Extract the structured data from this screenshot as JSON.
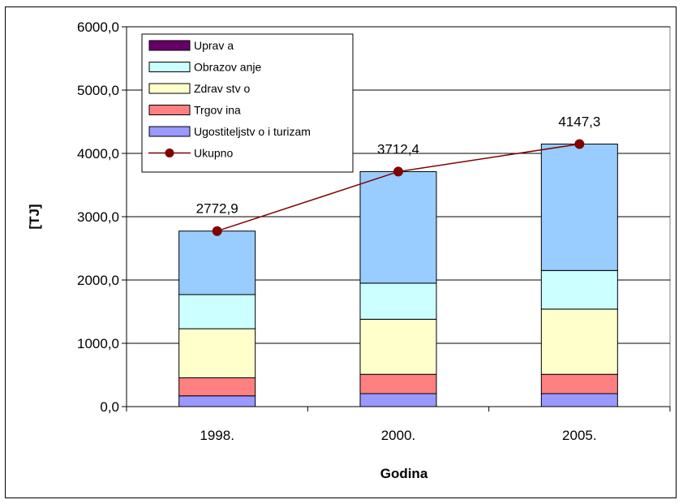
{
  "chart_data": {
    "type": "bar",
    "stacked": true,
    "categories": [
      "1998.",
      "2000.",
      "2005."
    ],
    "xlabel": "Godina",
    "ylabel": "[TJ]",
    "ylim": [
      0,
      6000
    ],
    "yticks": [
      "0,0",
      "1000,0",
      "2000,0",
      "3000,0",
      "4000,0",
      "5000,0",
      "6000,0"
    ],
    "grid": true,
    "legend_position": "top-left",
    "series": [
      {
        "name": "Ugostiteljstv o i turizam",
        "color": "#9999ff",
        "values": [
          170,
          205,
          205
        ]
      },
      {
        "name": "Trgov ina",
        "color": "#ff8080",
        "values": [
          285,
          305,
          305
        ]
      },
      {
        "name": "Zdrav stv o",
        "color": "#ffffcc",
        "values": [
          775,
          870,
          1030
        ]
      },
      {
        "name": "Obrazov anje",
        "color": "#ccffff",
        "values": [
          540,
          570,
          610
        ]
      },
      {
        "name": "Uprav a",
        "color": "#99ccff",
        "values": [
          1002.9,
          1762.4,
          1997.3
        ]
      }
    ],
    "legend_swatch_colors": {
      "Uprav a": "#660066"
    },
    "line": {
      "name": "Ukupno",
      "color": "#800000",
      "values": [
        2772.9,
        3712.4,
        4147.3
      ],
      "labels": [
        "2772,9",
        "3712,4",
        "4147,3"
      ]
    },
    "legend_order": [
      "Uprav a",
      "Obrazov anje",
      "Zdrav stv o",
      "Trgov ina",
      "Ugostiteljstv o i turizam",
      "Ukupno"
    ]
  }
}
